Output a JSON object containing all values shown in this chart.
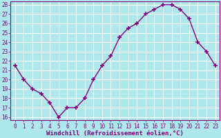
{
  "hours": [
    0,
    1,
    2,
    3,
    4,
    5,
    6,
    7,
    8,
    9,
    10,
    11,
    12,
    13,
    14,
    15,
    16,
    17,
    18,
    19,
    20,
    21,
    22,
    23
  ],
  "values": [
    21.5,
    20.0,
    19.0,
    18.5,
    17.5,
    16.0,
    17.0,
    17.0,
    18.0,
    20.0,
    21.5,
    22.5,
    24.5,
    25.5,
    26.0,
    27.0,
    27.5,
    28.0,
    28.0,
    27.5,
    26.5,
    24.0,
    23.0,
    21.5
  ],
  "line_color": "#800080",
  "marker": "+",
  "marker_size": 4,
  "bg_color": "#aee8ec",
  "grid_color": "#ffffff",
  "xlabel": "Windchill (Refroidissement éolien,°C)",
  "tick_color": "#800080",
  "ylim": [
    16,
    28
  ],
  "xlim_min": -0.5,
  "xlim_max": 23.5,
  "yticks": [
    16,
    17,
    18,
    19,
    20,
    21,
    22,
    23,
    24,
    25,
    26,
    27,
    28
  ],
  "xticks": [
    0,
    1,
    2,
    3,
    4,
    5,
    6,
    7,
    8,
    9,
    10,
    11,
    12,
    13,
    14,
    15,
    16,
    17,
    18,
    19,
    20,
    21,
    22,
    23
  ],
  "font_size_x": 5.5,
  "font_size_y": 5.5,
  "font_size_xlabel": 6.5,
  "linewidth": 1.0,
  "spine_color": "#800080"
}
